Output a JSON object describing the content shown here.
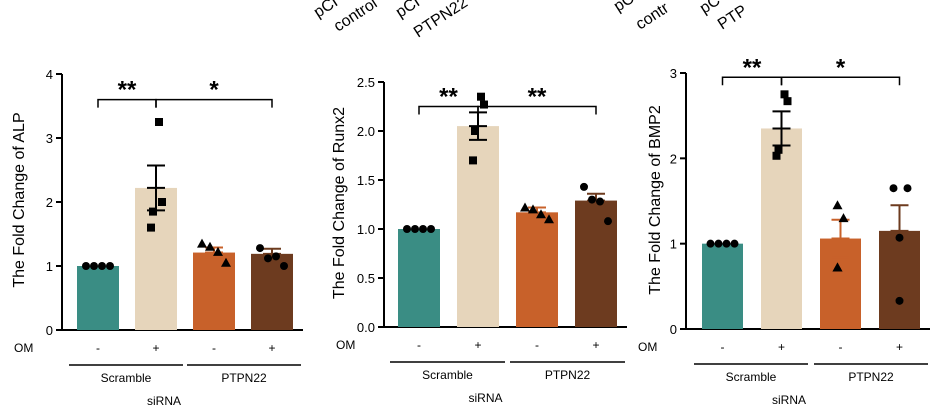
{
  "top_labels": {
    "panel1": [
      "pCI",
      "control",
      "pCI",
      "PTPN22"
    ],
    "panel3": [
      "pC",
      "contr",
      "pC",
      "PTP"
    ]
  },
  "chart_data": [
    {
      "type": "bar",
      "ylabel": "The Fold Change of ALP",
      "ylim": [
        0,
        4
      ],
      "yticks": [
        0,
        1,
        2,
        3,
        4
      ],
      "ytick_labels": [
        "0",
        "1",
        "2",
        "3",
        "4"
      ],
      "categories": [
        "Scramble -",
        "Scramble +",
        "PTPN22 -",
        "PTPN22 +"
      ],
      "values": [
        1.0,
        2.22,
        1.21,
        1.19
      ],
      "errors": [
        0.0,
        0.35,
        0.08,
        0.08
      ],
      "points": [
        [
          1.0,
          1.0,
          1.0,
          1.0
        ],
        [
          3.25,
          2.0,
          1.85,
          1.6
        ],
        [
          1.35,
          1.3,
          1.22,
          1.05
        ],
        [
          1.28,
          1.12,
          1.15,
          1.0
        ]
      ],
      "markers": [
        "circle",
        "square",
        "triangle",
        "circle"
      ],
      "colors": [
        "#3a8d84",
        "#e6d5bb",
        "#c8612a",
        "#6d3b1f"
      ],
      "om_label": "OM",
      "om_signs": [
        "-",
        "+",
        "-",
        "+"
      ],
      "groups": [
        "Scramble",
        "PTPN22"
      ],
      "xlabel": "siRNA",
      "significance": [
        {
          "from": 0,
          "to": 1,
          "label": "**",
          "level": 3.6
        },
        {
          "from": 1,
          "to": 3,
          "label": "*",
          "level": 3.6
        }
      ]
    },
    {
      "type": "bar",
      "ylabel": "The Fold Change of Runx2",
      "ylim": [
        0,
        2.5
      ],
      "yticks": [
        0,
        0.5,
        1,
        1.5,
        2,
        2.5
      ],
      "ytick_labels": [
        "0.0",
        "0.5",
        "1.0",
        "1.5",
        "2.0",
        "2.5"
      ],
      "categories": [
        "Scramble -",
        "Scramble +",
        "PTPN22 -",
        "PTPN22 +"
      ],
      "values": [
        1.0,
        2.05,
        1.17,
        1.29
      ],
      "errors": [
        0.0,
        0.14,
        0.05,
        0.07
      ],
      "points": [
        [
          1.0,
          1.0,
          1.0,
          1.0
        ],
        [
          2.35,
          2.27,
          2.0,
          1.7
        ],
        [
          1.22,
          1.2,
          1.15,
          1.1
        ],
        [
          1.43,
          1.3,
          1.28,
          1.08
        ]
      ],
      "markers": [
        "circle",
        "square",
        "triangle",
        "circle"
      ],
      "colors": [
        "#3a8d84",
        "#e6d5bb",
        "#c8612a",
        "#6d3b1f"
      ],
      "om_label": "OM",
      "om_signs": [
        "-",
        "+",
        "-",
        "+"
      ],
      "groups": [
        "Scramble",
        "PTPN22"
      ],
      "xlabel": "siRNA",
      "significance": [
        {
          "from": 0,
          "to": 1,
          "label": "**",
          "level": 2.25
        },
        {
          "from": 1,
          "to": 3,
          "label": "**",
          "level": 2.25
        }
      ]
    },
    {
      "type": "bar",
      "ylabel": "The Fold Change of BMP2",
      "ylim": [
        0,
        3
      ],
      "yticks": [
        0,
        1,
        2,
        3
      ],
      "ytick_labels": [
        "0",
        "1",
        "2",
        "3"
      ],
      "categories": [
        "Scramble -",
        "Scramble +",
        "PTPN22 -",
        "PTPN22 +"
      ],
      "values": [
        1.0,
        2.35,
        1.06,
        1.15
      ],
      "errors": [
        0.0,
        0.2,
        0.22,
        0.3
      ],
      "points": [
        [
          1.0,
          1.0,
          1.0,
          1.0
        ],
        [
          2.75,
          2.67,
          2.1,
          2.03
        ],
        [
          1.45,
          1.3,
          0.72,
          0.72
        ],
        [
          1.65,
          1.65,
          1.07,
          0.33
        ]
      ],
      "markers": [
        "circle",
        "square",
        "triangle",
        "circle"
      ],
      "colors": [
        "#3a8d84",
        "#e6d5bb",
        "#c8612a",
        "#6d3b1f"
      ],
      "om_label": "OM",
      "om_signs": [
        "-",
        "+",
        "-",
        "+"
      ],
      "groups": [
        "Scramble",
        "PTPN22"
      ],
      "xlabel": "siRNA",
      "significance": [
        {
          "from": 0,
          "to": 1,
          "label": "**",
          "level": 2.95
        },
        {
          "from": 1,
          "to": 3,
          "label": "*",
          "level": 2.95
        }
      ]
    }
  ]
}
